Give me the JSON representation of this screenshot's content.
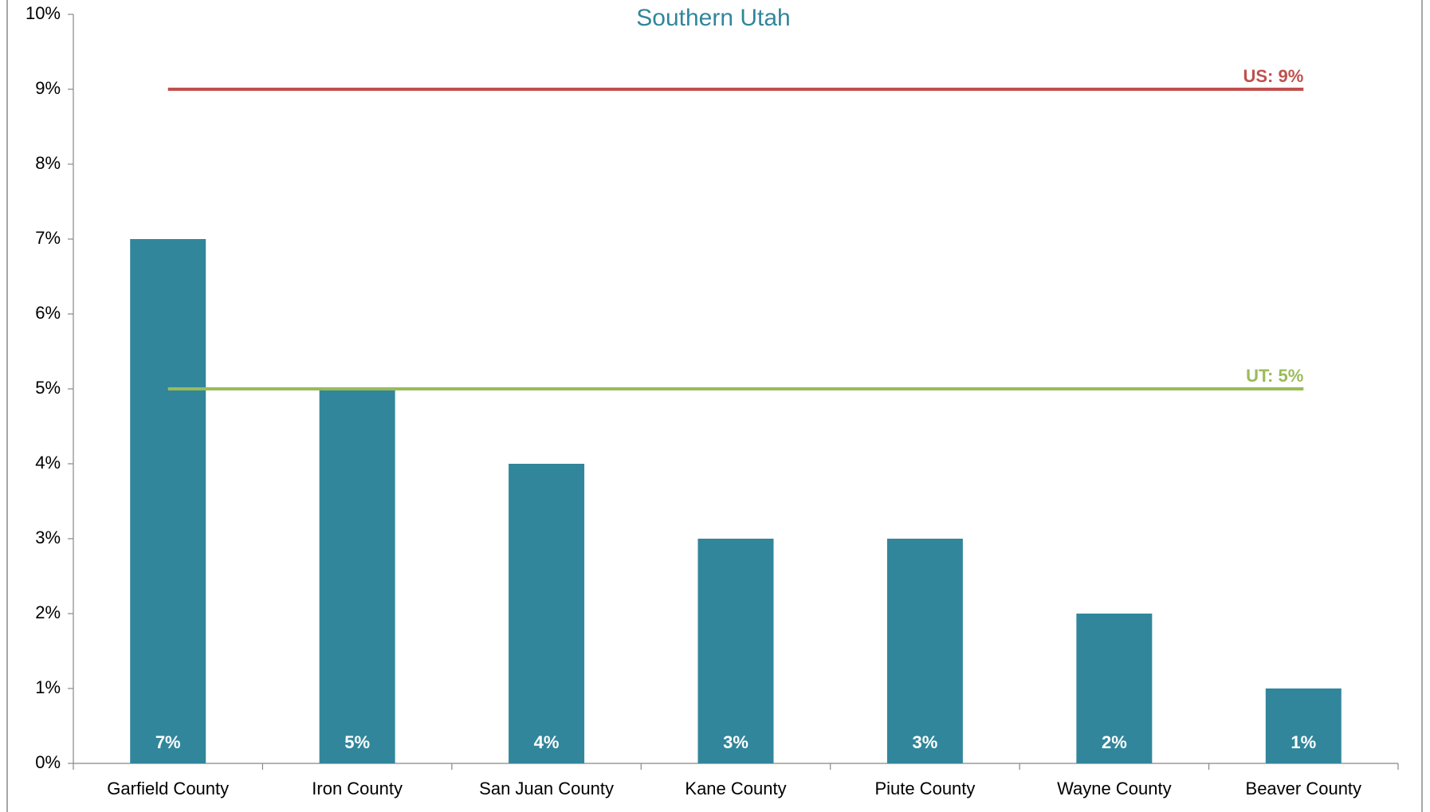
{
  "chart_data": {
    "type": "bar",
    "title": "Southern Utah",
    "categories": [
      "Garfield County",
      "Iron County",
      "San Juan County",
      "Kane County",
      "Piute County",
      "Wayne County",
      "Beaver County"
    ],
    "values": [
      7,
      5,
      4,
      3,
      3,
      2,
      1
    ],
    "value_labels": [
      "7%",
      "5%",
      "4%",
      "3%",
      "3%",
      "2%",
      "1%"
    ],
    "color": "#31869b",
    "ylim": [
      0,
      10
    ],
    "yticks": [
      {
        "value": 0,
        "label": "0%"
      },
      {
        "value": 1,
        "label": "1%"
      },
      {
        "value": 2,
        "label": "2%"
      },
      {
        "value": 3,
        "label": "3%"
      },
      {
        "value": 4,
        "label": "4%"
      },
      {
        "value": 5,
        "label": "5%"
      },
      {
        "value": 6,
        "label": "6%"
      },
      {
        "value": 7,
        "label": "7%"
      },
      {
        "value": 8,
        "label": "8%"
      },
      {
        "value": 9,
        "label": "9%"
      },
      {
        "value": 10,
        "label": "10%"
      }
    ],
    "reference_lines": [
      {
        "label": "US: 9%",
        "value": 9,
        "color": "#c0504d"
      },
      {
        "label": "UT: 5%",
        "value": 5,
        "color": "#9bbb59"
      }
    ]
  }
}
